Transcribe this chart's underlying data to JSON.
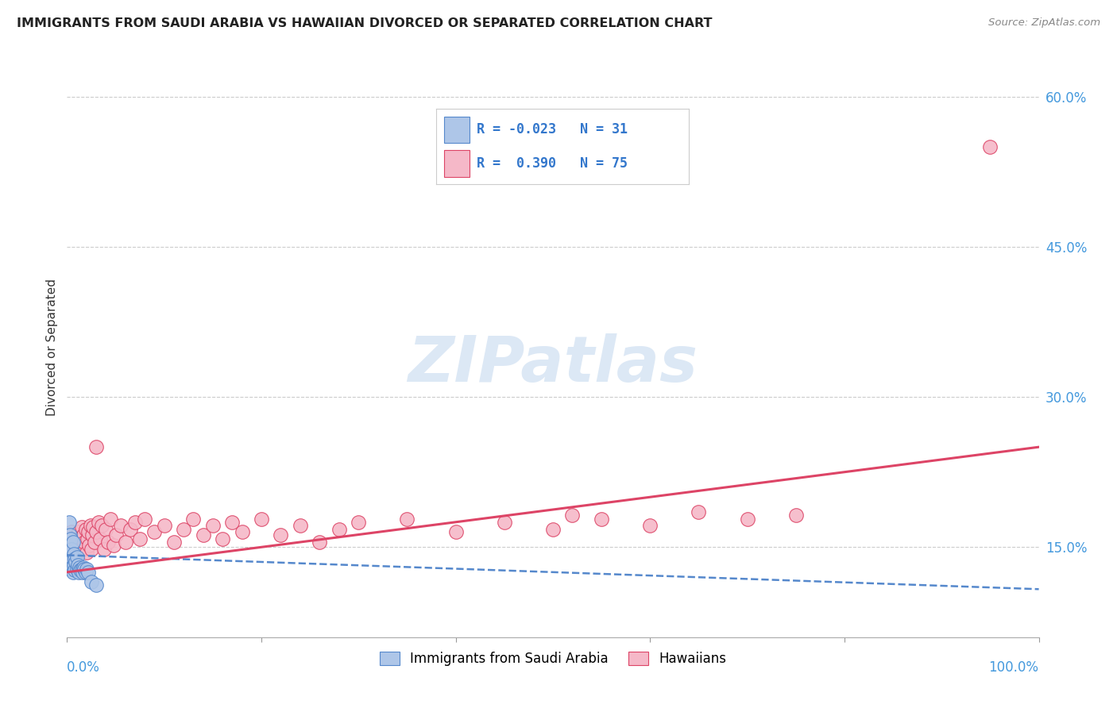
{
  "title": "IMMIGRANTS FROM SAUDI ARABIA VS HAWAIIAN DIVORCED OR SEPARATED CORRELATION CHART",
  "source": "Source: ZipAtlas.com",
  "ylabel": "Divorced or Separated",
  "ytick_values": [
    0.15,
    0.3,
    0.45,
    0.6
  ],
  "ytick_labels": [
    "15.0%",
    "30.0%",
    "45.0%",
    "60.0%"
  ],
  "xlim": [
    0.0,
    1.0
  ],
  "ylim": [
    0.06,
    0.64
  ],
  "color_blue": "#aec6e8",
  "color_pink": "#f5b8c8",
  "line_blue": "#5588cc",
  "line_pink": "#dd4466",
  "watermark_text": "ZIPatlas",
  "watermark_color": "#dce8f5",
  "blue_scatter_x": [
    0.001,
    0.002,
    0.002,
    0.003,
    0.003,
    0.004,
    0.004,
    0.005,
    0.005,
    0.006,
    0.006,
    0.007,
    0.007,
    0.008,
    0.008,
    0.009,
    0.01,
    0.01,
    0.011,
    0.012,
    0.013,
    0.014,
    0.015,
    0.016,
    0.017,
    0.018,
    0.019,
    0.02,
    0.022,
    0.025,
    0.03
  ],
  "blue_scatter_y": [
    0.13,
    0.145,
    0.175,
    0.135,
    0.162,
    0.128,
    0.158,
    0.13,
    0.148,
    0.125,
    0.155,
    0.132,
    0.143,
    0.127,
    0.138,
    0.135,
    0.14,
    0.128,
    0.132,
    0.125,
    0.13,
    0.127,
    0.128,
    0.125,
    0.13,
    0.128,
    0.125,
    0.128,
    0.125,
    0.115,
    0.112
  ],
  "pink_scatter_x": [
    0.001,
    0.002,
    0.003,
    0.004,
    0.005,
    0.005,
    0.006,
    0.007,
    0.008,
    0.009,
    0.01,
    0.01,
    0.011,
    0.012,
    0.012,
    0.013,
    0.014,
    0.015,
    0.016,
    0.017,
    0.018,
    0.019,
    0.02,
    0.021,
    0.022,
    0.023,
    0.024,
    0.025,
    0.026,
    0.027,
    0.028,
    0.03,
    0.032,
    0.034,
    0.036,
    0.038,
    0.04,
    0.042,
    0.045,
    0.048,
    0.05,
    0.055,
    0.06,
    0.065,
    0.07,
    0.075,
    0.08,
    0.09,
    0.1,
    0.11,
    0.12,
    0.13,
    0.14,
    0.15,
    0.16,
    0.17,
    0.18,
    0.2,
    0.22,
    0.24,
    0.26,
    0.28,
    0.3,
    0.35,
    0.4,
    0.45,
    0.5,
    0.52,
    0.55,
    0.6,
    0.65,
    0.7,
    0.75,
    0.95,
    0.03
  ],
  "pink_scatter_y": [
    0.148,
    0.155,
    0.14,
    0.16,
    0.145,
    0.165,
    0.138,
    0.152,
    0.158,
    0.143,
    0.162,
    0.148,
    0.155,
    0.145,
    0.165,
    0.158,
    0.152,
    0.17,
    0.148,
    0.162,
    0.155,
    0.168,
    0.145,
    0.158,
    0.165,
    0.152,
    0.172,
    0.148,
    0.162,
    0.17,
    0.155,
    0.165,
    0.175,
    0.158,
    0.172,
    0.148,
    0.168,
    0.155,
    0.178,
    0.152,
    0.162,
    0.172,
    0.155,
    0.168,
    0.175,
    0.158,
    0.178,
    0.165,
    0.172,
    0.155,
    0.168,
    0.178,
    0.162,
    0.172,
    0.158,
    0.175,
    0.165,
    0.178,
    0.162,
    0.172,
    0.155,
    0.168,
    0.175,
    0.178,
    0.165,
    0.175,
    0.168,
    0.182,
    0.178,
    0.172,
    0.185,
    0.178,
    0.182,
    0.55,
    0.25
  ],
  "blue_trend_x": [
    0.0,
    1.0
  ],
  "blue_trend_y": [
    0.142,
    0.108
  ],
  "pink_trend_x": [
    0.0,
    1.0
  ],
  "pink_trend_y": [
    0.125,
    0.25
  ]
}
